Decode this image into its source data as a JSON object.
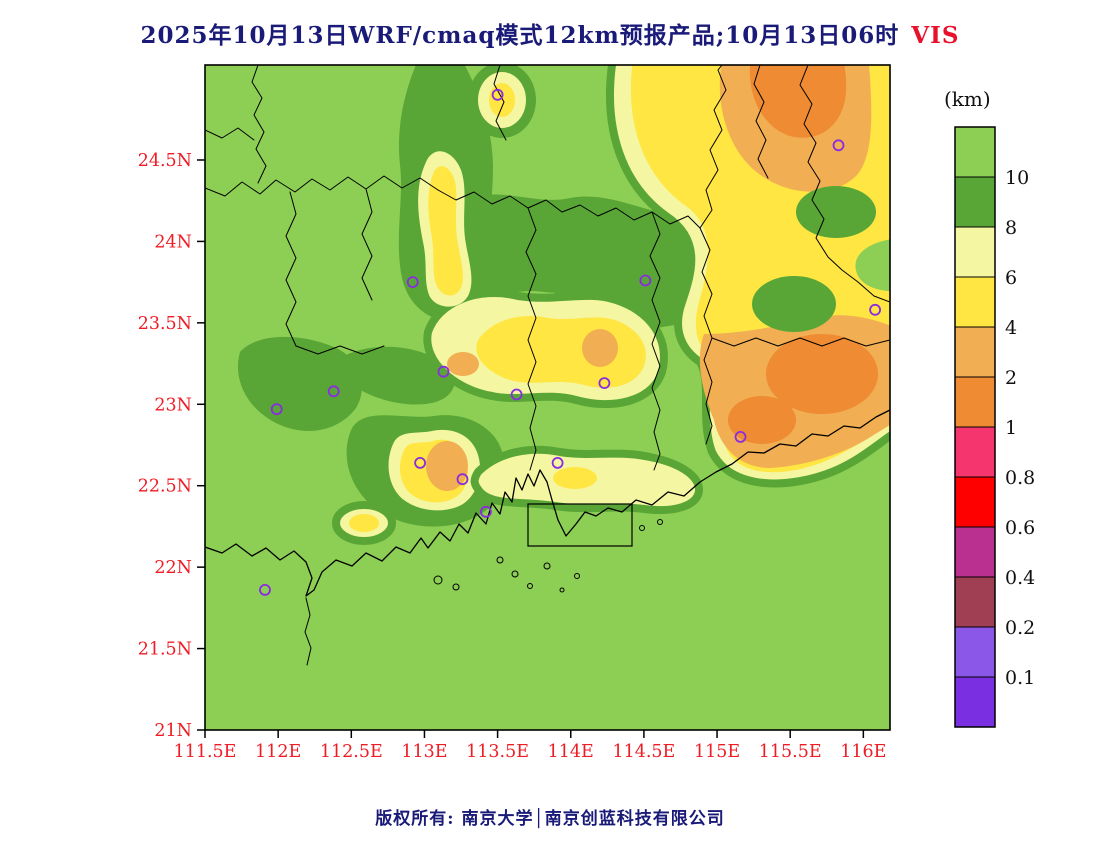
{
  "title": {
    "main": "2025年10月13日WRF/cmaq模式12km预报产品;10月13日06时",
    "variable": "VIS"
  },
  "footer": {
    "copyright": "版权所有: 南京大学│南京创蓝科技有限公司"
  },
  "legend": {
    "title": "(km)",
    "segments": [
      {
        "range": ">10",
        "color": "#8dcf54",
        "boundary": "10"
      },
      {
        "range": "8-10",
        "color": "#59a636",
        "boundary": "8"
      },
      {
        "range": "6-8",
        "color": "#f4f6a2",
        "boundary": "6"
      },
      {
        "range": "4-6",
        "color": "#ffe642",
        "boundary": "4"
      },
      {
        "range": "2-4",
        "color": "#f2ae52",
        "boundary": "2"
      },
      {
        "range": "1-2",
        "color": "#ee8b33",
        "boundary": "1"
      },
      {
        "range": "0.8-1",
        "color": "#f5356e",
        "boundary": "0.8"
      },
      {
        "range": "0.6-0.8",
        "color": "#ff0000",
        "boundary": "0.6"
      },
      {
        "range": "0.4-0.6",
        "color": "#b93090",
        "boundary": "0.4"
      },
      {
        "range": "0.2-0.4",
        "color": "#a03e53",
        "boundary": "0.2"
      },
      {
        "range": "0.1-0.2",
        "color": "#8b57e8",
        "boundary": "0.1"
      },
      {
        "range": "<0.1",
        "color": "#7a2fe0",
        "boundary": null
      }
    ]
  },
  "axes": {
    "lat_ticks": [
      {
        "label": "24.5N",
        "value": 24.5
      },
      {
        "label": "24N",
        "value": 24.0
      },
      {
        "label": "23.5N",
        "value": 23.5
      },
      {
        "label": "23N",
        "value": 23.0
      },
      {
        "label": "22.5N",
        "value": 22.5
      },
      {
        "label": "22N",
        "value": 22.0
      },
      {
        "label": "21.5N",
        "value": 21.5
      },
      {
        "label": "21N",
        "value": 21.0
      }
    ],
    "lon_ticks": [
      {
        "label": "111.5E",
        "value": 111.5
      },
      {
        "label": "112E",
        "value": 112.0
      },
      {
        "label": "112.5E",
        "value": 112.5
      },
      {
        "label": "113E",
        "value": 113.0
      },
      {
        "label": "113.5E",
        "value": 113.5
      },
      {
        "label": "114E",
        "value": 114.0
      },
      {
        "label": "114.5E",
        "value": 114.5
      },
      {
        "label": "115E",
        "value": 115.0
      },
      {
        "label": "115.5E",
        "value": 115.5
      },
      {
        "label": "116E",
        "value": 116.0
      }
    ]
  },
  "palette": {
    "green_light": "#8dcf54",
    "green_dark": "#59a636",
    "yellow_pale": "#f4f6a2",
    "yellow": "#ffe642",
    "orange_light": "#f2ae52",
    "orange_deep": "#ee8b33",
    "station": "#8a2be2",
    "axis_red": "#ee1c25",
    "title_navy": "#1a1a78"
  },
  "chart_data": {
    "type": "heatmap",
    "title": "2025年10月13日WRF/cmaq模式12km预报产品;10月13日06时 VIS",
    "variable": "VIS",
    "units": "km",
    "run_date_label": "2025年10月13日",
    "valid_time_label": "10月13日06时",
    "legend_title": "(km)",
    "lon_tick_values": [
      111.5,
      112,
      112.5,
      113,
      113.5,
      114,
      114.5,
      115,
      115.5,
      116
    ],
    "lat_tick_values": [
      21,
      21.5,
      22,
      22.5,
      23,
      23.5,
      24,
      24.5
    ],
    "lon_range": [
      111.5,
      116.2
    ],
    "lat_range": [
      21.0,
      25.1
    ],
    "contour_levels_km": [
      0.1,
      0.2,
      0.4,
      0.6,
      0.8,
      1,
      2,
      4,
      6,
      8,
      10
    ],
    "level_colors": [
      "#7a2fe0",
      "#8b57e8",
      "#a03e53",
      "#b93090",
      "#ff0000",
      "#f5356e",
      "#ee8b33",
      "#f2ae52",
      "#ffe642",
      "#f4f6a2",
      "#59a636",
      "#8dcf54"
    ],
    "grid": false,
    "legend_position": "right",
    "stations": [
      {
        "lon": 113.5,
        "lat": 24.9
      },
      {
        "lon": 115.83,
        "lat": 24.59
      },
      {
        "lon": 112.92,
        "lat": 23.75
      },
      {
        "lon": 114.51,
        "lat": 23.76
      },
      {
        "lon": 116.08,
        "lat": 23.58
      },
      {
        "lon": 113.13,
        "lat": 23.2
      },
      {
        "lon": 112.38,
        "lat": 23.08
      },
      {
        "lon": 113.63,
        "lat": 23.06
      },
      {
        "lon": 114.23,
        "lat": 23.13
      },
      {
        "lon": 111.99,
        "lat": 22.97
      },
      {
        "lon": 115.16,
        "lat": 22.8
      },
      {
        "lon": 112.97,
        "lat": 22.64
      },
      {
        "lon": 113.26,
        "lat": 22.54
      },
      {
        "lon": 113.91,
        "lat": 22.64
      },
      {
        "lon": 113.42,
        "lat": 22.34
      },
      {
        "lon": 111.91,
        "lat": 21.86
      }
    ],
    "field_summary": [
      {
        "area": "northeast corner (115-116.2E, 24-25N)",
        "visibility_km": "2-4 with 1-2 cores"
      },
      {
        "area": "east / coastal east (114.8-116.2E, 22.8-23.6N)",
        "visibility_km": "2-4 with 1-2 cores"
      },
      {
        "area": "central band (113.2-114.6E, 23.2-23.6N)",
        "visibility_km": "4-8 with small 2-4 spots"
      },
      {
        "area": "north-central strip (~113E, 23.7-24.4N)",
        "visibility_km": "4-8"
      },
      {
        "area": "Pearl River Delta (113.3-113.8E, 22.4-22.8N)",
        "visibility_km": "4-6 with 2-4 core"
      },
      {
        "area": "remaining land and sea",
        "visibility_km": ">8 to >10"
      }
    ]
  }
}
